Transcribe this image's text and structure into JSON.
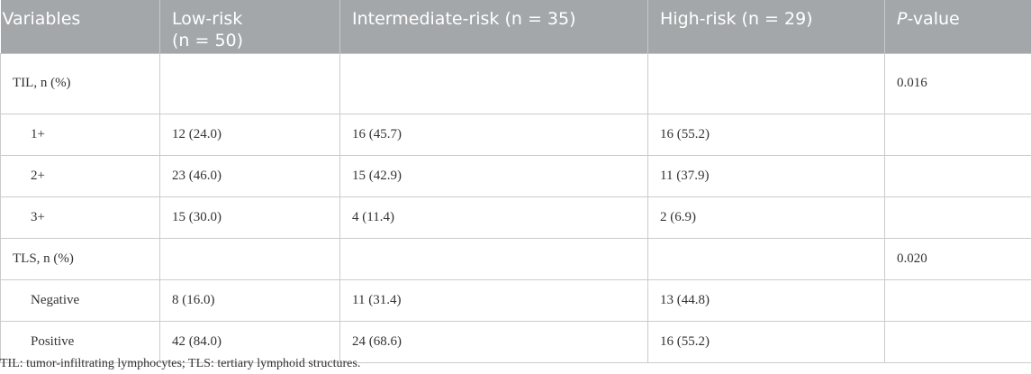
{
  "header": {
    "col1": "Variables",
    "col2_line1": "Low-risk",
    "col2_line2": "(n = 50)",
    "col3": "Intermediate-risk (n = 35)",
    "col4": "High-risk (n = 29)",
    "col5_italic": "P",
    "col5_rest": "-value"
  },
  "rows": [
    {
      "variable": "TIL, n (%)",
      "low": "",
      "intermediate": "",
      "high": "",
      "p": "0.016"
    },
    {
      "variable": "1+",
      "low": "12 (24.0)",
      "intermediate": "16 (45.7)",
      "high": "16 (55.2)",
      "p": ""
    },
    {
      "variable": "2+",
      "low": "23 (46.0)",
      "intermediate": "15 (42.9)",
      "high": "11 (37.9)",
      "p": ""
    },
    {
      "variable": "3+",
      "low": "15 (30.0)",
      "intermediate": "4 (11.4)",
      "high": "2 (6.9)",
      "p": ""
    },
    {
      "variable": "TLS, n (%)",
      "low": "",
      "intermediate": "",
      "high": "",
      "p": "0.020"
    },
    {
      "variable": "Negative",
      "low": "8 (16.0)",
      "intermediate": "11 (31.4)",
      "high": "13 (44.8)",
      "p": ""
    },
    {
      "variable": "Positive",
      "low": "42 (84.0)",
      "intermediate": "24 (68.6)",
      "high": "16 (55.2)",
      "p": ""
    }
  ],
  "footnote": "TIL: tumor-infiltrating lymphocytes; TLS: tertiary lymphoid structures.",
  "colors": {
    "header_bg": "#a4a7aa",
    "header_text": "#ffffff",
    "border": "#c9cbcd",
    "body_text": "#333333"
  }
}
